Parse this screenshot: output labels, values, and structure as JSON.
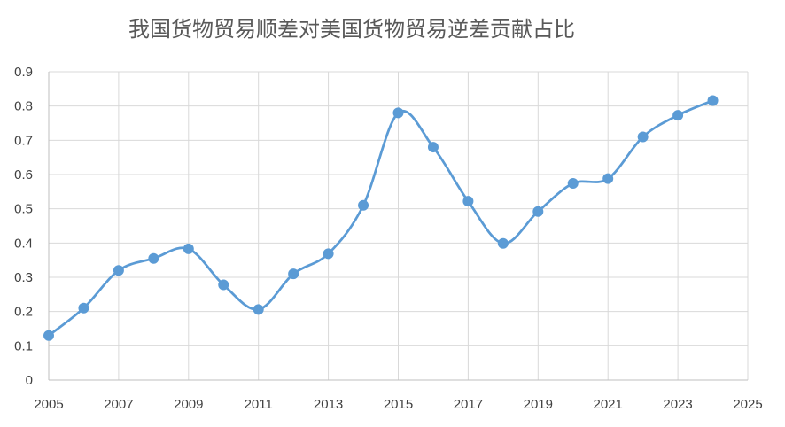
{
  "chart_data": {
    "type": "line",
    "title": "我国货物贸易顺差对美国货物贸易逆差贡献占比",
    "xlabel": "",
    "ylabel": "",
    "xlim": [
      2005,
      2025
    ],
    "ylim": [
      0,
      0.9
    ],
    "x_ticks": [
      "2005",
      "2007",
      "2009",
      "2011",
      "2013",
      "2015",
      "2017",
      "2019",
      "2021",
      "2023",
      "2025"
    ],
    "y_ticks": [
      "0",
      "0.1",
      "0.2",
      "0.3",
      "0.4",
      "0.5",
      "0.6",
      "0.7",
      "0.8",
      "0.9"
    ],
    "grid": true,
    "smooth": true,
    "legend": "none",
    "color": "#5b9bd5",
    "series": [
      {
        "x": [
          2005,
          2006,
          2007,
          2008,
          2009,
          2010,
          2011,
          2012,
          2013,
          2014,
          2015,
          2016,
          2017,
          2018,
          2019,
          2020,
          2021,
          2022,
          2023,
          2024
        ],
        "values": [
          0.13,
          0.21,
          0.32,
          0.355,
          0.383,
          0.278,
          0.206,
          0.31,
          0.369,
          0.51,
          0.78,
          0.68,
          0.522,
          0.399,
          0.492,
          0.574,
          0.588,
          0.71,
          0.773,
          0.816
        ]
      }
    ]
  }
}
